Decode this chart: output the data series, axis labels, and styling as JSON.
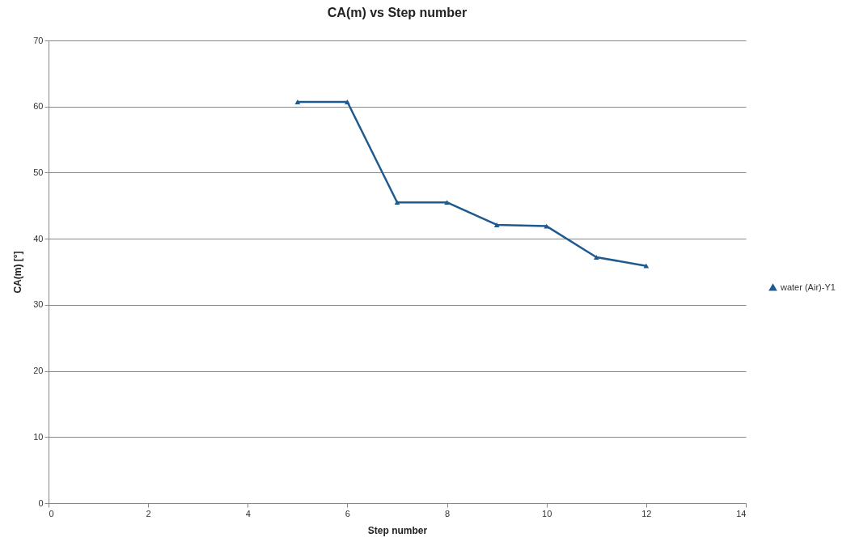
{
  "chart_data": {
    "type": "line",
    "title": "CA(m) vs Step number",
    "xlabel": "Step number",
    "ylabel": "CA(m) [°]",
    "x": [
      5,
      6,
      7,
      8,
      9,
      10,
      11,
      12
    ],
    "series": [
      {
        "name": "water (Air)-Y1",
        "color": "#1f5a8f",
        "values": [
          60.7,
          60.7,
          45.5,
          45.5,
          42.1,
          41.9,
          37.2,
          35.9
        ]
      }
    ],
    "xlim": [
      0,
      14
    ],
    "xticks": [
      0,
      2,
      4,
      6,
      8,
      10,
      12,
      14
    ],
    "ylim": [
      0,
      70
    ],
    "yticks": [
      0,
      10,
      20,
      30,
      40,
      50,
      60,
      70
    ],
    "grid": "y",
    "legend": "right",
    "marker": "triangle",
    "line_style": "solid"
  }
}
